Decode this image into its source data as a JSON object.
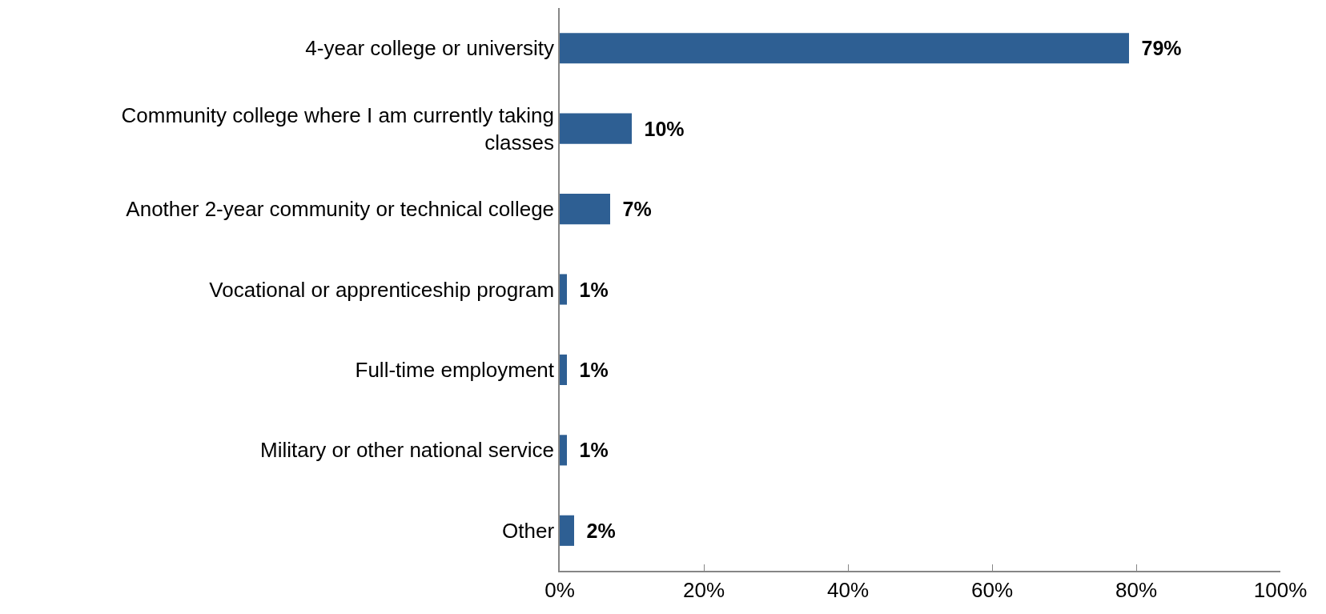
{
  "chart_data": {
    "type": "bar",
    "orientation": "horizontal",
    "categories": [
      "4-year college or university",
      "Community college where I am currently taking classes",
      "Another 2-year community or technical college",
      "Vocational or apprenticeship program",
      "Full-time employment",
      "Military or other national service",
      "Other"
    ],
    "values": [
      79,
      10,
      7,
      1,
      1,
      1,
      2
    ],
    "value_labels": [
      "79%",
      "10%",
      "7%",
      "1%",
      "1%",
      "1%",
      "2%"
    ],
    "color": "#2e5f93",
    "xlim": [
      0,
      100
    ],
    "xticks": [
      {
        "value": 0,
        "label": "0%"
      },
      {
        "value": 20,
        "label": "20%"
      },
      {
        "value": 40,
        "label": "40%"
      },
      {
        "value": 60,
        "label": "60%"
      },
      {
        "value": 80,
        "label": "80%"
      },
      {
        "value": 100,
        "label": "100%"
      }
    ],
    "legend": false
  }
}
